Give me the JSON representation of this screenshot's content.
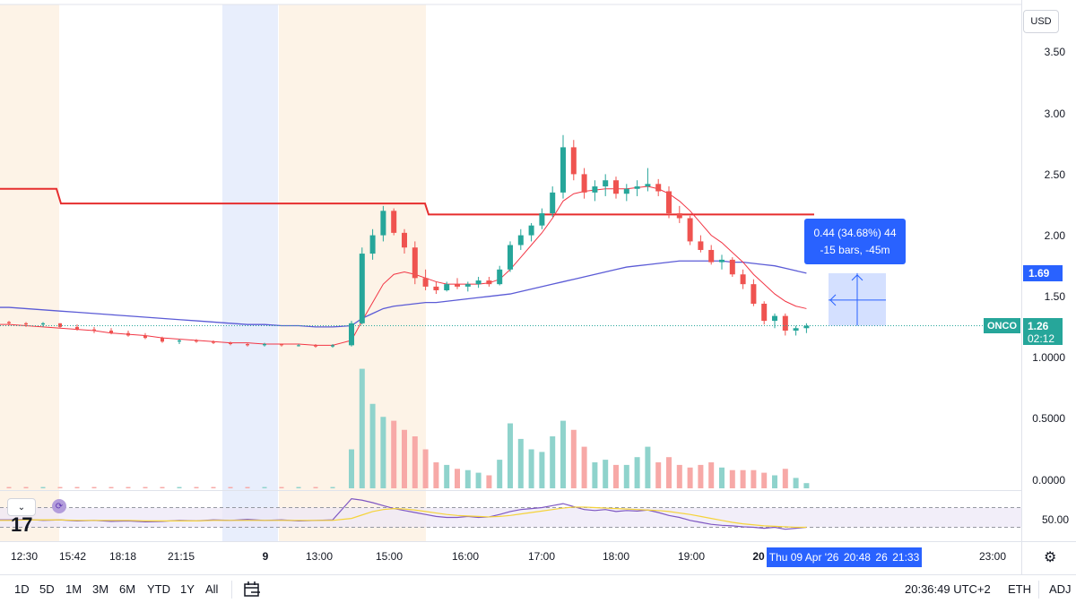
{
  "currency": "USD",
  "symbol": "ONCO",
  "last_price": "1.26",
  "countdown": "02:12",
  "crosshair_price": "1.69",
  "measure": {
    "line1": "0.44 (34.68%) 44",
    "line2": "-15 bars, -45m"
  },
  "y_ticks": [
    "3.50",
    "3.00",
    "2.50",
    "2.00",
    "1.50",
    "1.0000",
    "0.5000",
    "0.0000"
  ],
  "rsi_tick": "50.00",
  "x_ticks": [
    "12:30",
    "15:42",
    "18:18",
    "21:15",
    "9",
    "13:00",
    "15:00",
    "16:00",
    "17:00",
    "18:00",
    "19:00",
    "20",
    "23:00"
  ],
  "crosshair_date": {
    "date": "Thu 09 Apr '26",
    "t1": "20:48",
    "t2": "26",
    "t3": "21:33"
  },
  "timeframes": [
    "1D",
    "5D",
    "1M",
    "3M",
    "6M",
    "YTD",
    "1Y",
    "All"
  ],
  "status": {
    "time": "20:36:49 UTC+2",
    "session": "ETH",
    "adj": "ADJ"
  },
  "colors": {
    "up": "#26a69a",
    "down": "#ef5350",
    "level": "#e62e2e",
    "ma_slow": "#5b5bd6",
    "ma_fast": "#f23645",
    "rsi": "#7e57c2",
    "rsi_ma": "#f5d33a",
    "accent": "#2962ff"
  },
  "chart_data": {
    "type": "candlestick",
    "price_range": [
      0.9,
      3.75
    ],
    "volume_range": [
      0,
      1.0
    ],
    "rsi_band": [
      30,
      70
    ],
    "level_line": {
      "before": 2.38,
      "after_1": 2.26,
      "after_2": 2.17
    },
    "candles": [
      [
        1.29,
        1.3,
        1.26,
        1.28
      ],
      [
        1.28,
        1.29,
        1.25,
        1.27
      ],
      [
        1.27,
        1.29,
        1.25,
        1.28
      ],
      [
        1.28,
        1.28,
        1.24,
        1.25
      ],
      [
        1.25,
        1.27,
        1.22,
        1.23
      ],
      [
        1.23,
        1.25,
        1.2,
        1.22
      ],
      [
        1.22,
        1.24,
        1.19,
        1.2
      ],
      [
        1.2,
        1.22,
        1.17,
        1.18
      ],
      [
        1.18,
        1.2,
        1.15,
        1.16
      ],
      [
        1.16,
        1.17,
        1.12,
        1.13
      ],
      [
        1.13,
        1.15,
        1.11,
        1.14
      ],
      [
        1.14,
        1.15,
        1.12,
        1.13
      ],
      [
        1.13,
        1.14,
        1.11,
        1.12
      ],
      [
        1.12,
        1.13,
        1.1,
        1.11
      ],
      [
        1.11,
        1.12,
        1.09,
        1.1
      ],
      [
        1.1,
        1.12,
        1.09,
        1.11
      ],
      [
        1.11,
        1.11,
        1.09,
        1.1
      ],
      [
        1.1,
        1.11,
        1.09,
        1.1
      ],
      [
        1.1,
        1.11,
        1.08,
        1.09
      ],
      [
        1.09,
        1.11,
        1.08,
        1.1
      ],
      [
        1.1,
        1.3,
        1.09,
        1.28
      ],
      [
        1.28,
        1.9,
        1.27,
        1.85
      ],
      [
        1.85,
        2.05,
        1.8,
        2.0
      ],
      [
        2.0,
        2.24,
        1.95,
        2.2
      ],
      [
        2.2,
        2.22,
        2.0,
        2.02
      ],
      [
        2.02,
        2.05,
        1.85,
        1.9
      ],
      [
        1.9,
        1.95,
        1.6,
        1.65
      ],
      [
        1.65,
        1.72,
        1.55,
        1.58
      ],
      [
        1.58,
        1.62,
        1.52,
        1.55
      ],
      [
        1.55,
        1.62,
        1.54,
        1.6
      ],
      [
        1.6,
        1.65,
        1.56,
        1.58
      ],
      [
        1.58,
        1.62,
        1.54,
        1.6
      ],
      [
        1.6,
        1.66,
        1.57,
        1.63
      ],
      [
        1.63,
        1.66,
        1.58,
        1.6
      ],
      [
        1.6,
        1.75,
        1.59,
        1.72
      ],
      [
        1.72,
        1.95,
        1.7,
        1.92
      ],
      [
        1.92,
        2.05,
        1.88,
        2.0
      ],
      [
        2.0,
        2.1,
        1.95,
        2.08
      ],
      [
        2.08,
        2.22,
        2.05,
        2.18
      ],
      [
        2.18,
        2.4,
        2.15,
        2.35
      ],
      [
        2.35,
        2.82,
        2.3,
        2.72
      ],
      [
        2.72,
        2.78,
        2.45,
        2.5
      ],
      [
        2.5,
        2.55,
        2.3,
        2.35
      ],
      [
        2.35,
        2.45,
        2.28,
        2.4
      ],
      [
        2.4,
        2.5,
        2.32,
        2.45
      ],
      [
        2.45,
        2.48,
        2.3,
        2.34
      ],
      [
        2.34,
        2.42,
        2.28,
        2.38
      ],
      [
        2.38,
        2.45,
        2.32,
        2.4
      ],
      [
        2.4,
        2.55,
        2.36,
        2.42
      ],
      [
        2.42,
        2.46,
        2.32,
        2.36
      ],
      [
        2.36,
        2.4,
        2.14,
        2.18
      ],
      [
        2.18,
        2.24,
        2.1,
        2.14
      ],
      [
        2.14,
        2.16,
        1.92,
        1.95
      ],
      [
        1.95,
        2.0,
        1.86,
        1.88
      ],
      [
        1.88,
        1.92,
        1.76,
        1.78
      ],
      [
        1.78,
        1.84,
        1.72,
        1.8
      ],
      [
        1.8,
        1.82,
        1.66,
        1.68
      ],
      [
        1.68,
        1.72,
        1.56,
        1.6
      ],
      [
        1.6,
        1.64,
        1.42,
        1.44
      ],
      [
        1.44,
        1.46,
        1.27,
        1.3
      ],
      [
        1.3,
        1.36,
        1.24,
        1.34
      ],
      [
        1.34,
        1.36,
        1.18,
        1.22
      ],
      [
        1.22,
        1.26,
        1.18,
        1.24
      ],
      [
        1.24,
        1.28,
        1.2,
        1.26
      ]
    ],
    "volume": [
      0.01,
      0.01,
      0.01,
      0.01,
      0.01,
      0.01,
      0.01,
      0.01,
      0.01,
      0.01,
      0.01,
      0.01,
      0.01,
      0.01,
      0.01,
      0.01,
      0.01,
      0.01,
      0.01,
      0.01,
      0.3,
      0.92,
      0.65,
      0.55,
      0.52,
      0.45,
      0.4,
      0.3,
      0.2,
      0.18,
      0.15,
      0.14,
      0.12,
      0.1,
      0.22,
      0.5,
      0.38,
      0.3,
      0.28,
      0.4,
      0.52,
      0.45,
      0.32,
      0.2,
      0.22,
      0.18,
      0.18,
      0.24,
      0.32,
      0.2,
      0.24,
      0.18,
      0.16,
      0.18,
      0.2,
      0.16,
      0.14,
      0.14,
      0.14,
      0.12,
      0.1,
      0.15,
      0.08,
      0.04
    ],
    "ma_fast": [
      1.27,
      1.26,
      1.25,
      1.24,
      1.23,
      1.22,
      1.2,
      1.19,
      1.18,
      1.16,
      1.15,
      1.14,
      1.13,
      1.12,
      1.12,
      1.11,
      1.11,
      1.11,
      1.1,
      1.1,
      1.14,
      1.3,
      1.45,
      1.6,
      1.68,
      1.7,
      1.68,
      1.65,
      1.62,
      1.6,
      1.6,
      1.6,
      1.6,
      1.61,
      1.64,
      1.72,
      1.82,
      1.92,
      2.02,
      2.14,
      2.28,
      2.34,
      2.36,
      2.37,
      2.38,
      2.38,
      2.38,
      2.39,
      2.4,
      2.38,
      2.34,
      2.28,
      2.2,
      2.1,
      2.0,
      1.94,
      1.86,
      1.78,
      1.68,
      1.6,
      1.52,
      1.46,
      1.42,
      1.4
    ],
    "ma_slow": [
      1.41,
      1.4,
      1.39,
      1.38,
      1.37,
      1.36,
      1.35,
      1.34,
      1.33,
      1.32,
      1.31,
      1.3,
      1.29,
      1.28,
      1.27,
      1.27,
      1.26,
      1.26,
      1.25,
      1.25,
      1.26,
      1.32,
      1.36,
      1.4,
      1.42,
      1.43,
      1.44,
      1.45,
      1.45,
      1.46,
      1.47,
      1.48,
      1.49,
      1.5,
      1.51,
      1.52,
      1.54,
      1.56,
      1.58,
      1.6,
      1.62,
      1.64,
      1.66,
      1.68,
      1.7,
      1.72,
      1.74,
      1.75,
      1.76,
      1.77,
      1.78,
      1.79,
      1.79,
      1.79,
      1.79,
      1.79,
      1.78,
      1.78,
      1.77,
      1.76,
      1.75,
      1.73,
      1.71,
      1.69
    ],
    "rsi": [
      45,
      46,
      44,
      45,
      43,
      44,
      42,
      43,
      41,
      42,
      44,
      43,
      45,
      44,
      46,
      44,
      45,
      43,
      44,
      45,
      88,
      85,
      80,
      74,
      68,
      64,
      60,
      56,
      52,
      50,
      50,
      52,
      50,
      51,
      56,
      62,
      66,
      68,
      70,
      74,
      78,
      72,
      66,
      64,
      66,
      62,
      64,
      63,
      65,
      60,
      54,
      50,
      44,
      40,
      36,
      34,
      33,
      31,
      30,
      28,
      30,
      26,
      28,
      30
    ],
    "rsi_ma": [
      44,
      45,
      45,
      45,
      44,
      44,
      44,
      44,
      43,
      43,
      43,
      43,
      44,
      44,
      44,
      44,
      44,
      44,
      44,
      44,
      48,
      55,
      62,
      66,
      68,
      67,
      65,
      62,
      59,
      56,
      54,
      53,
      52,
      51,
      52,
      54,
      57,
      60,
      63,
      66,
      69,
      71,
      71,
      70,
      69,
      68,
      67,
      66,
      65,
      64,
      62,
      59,
      56,
      52,
      48,
      44,
      40,
      37,
      35,
      33,
      32,
      31,
      30,
      30
    ]
  }
}
